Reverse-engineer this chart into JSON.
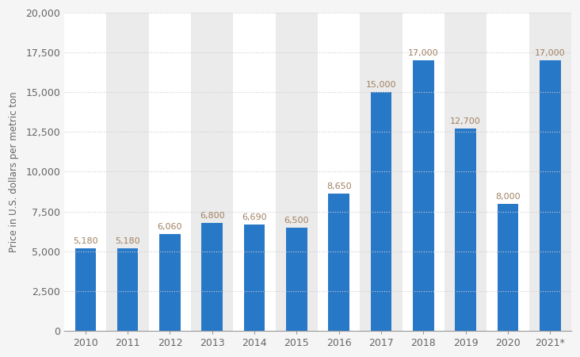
{
  "categories": [
    "2010",
    "2011",
    "2012",
    "2013",
    "2014",
    "2015",
    "2016",
    "2017",
    "2018",
    "2019",
    "2020",
    "2021*"
  ],
  "values": [
    5180,
    5180,
    6060,
    6800,
    6690,
    6500,
    8650,
    15000,
    17000,
    12700,
    8000,
    17000
  ],
  "bar_color": "#2878c8",
  "background_color": "#f5f5f5",
  "col_bg_white": "#ffffff",
  "col_bg_gray": "#ebebeb",
  "ylabel": "Price in U.S. dollars per metric ton",
  "ylim": [
    0,
    20000
  ],
  "yticks": [
    0,
    2500,
    5000,
    7500,
    10000,
    12500,
    15000,
    17500,
    20000
  ],
  "ytick_labels": [
    "0",
    "2,500",
    "5,000",
    "7,500",
    "10,000",
    "12,500",
    "15,000",
    "17,500",
    "20,000"
  ],
  "label_color": "#a08060",
  "grid_color": "#cccccc",
  "bar_width": 0.5,
  "label_fontsize": 8.0,
  "tick_fontsize": 9,
  "ylabel_fontsize": 8.5
}
